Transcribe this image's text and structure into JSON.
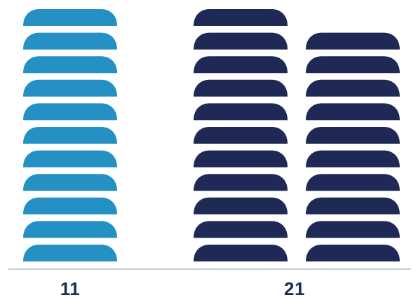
{
  "chart_data": {
    "type": "bar",
    "categories": [
      "11",
      "21"
    ],
    "series": [
      {
        "stacks": [
          11,
          0
        ]
      },
      {
        "stacks": [
          0,
          21
        ]
      }
    ],
    "group_values": [
      11,
      21
    ],
    "unit_per_icon": 1,
    "columns": [
      {
        "group": "11",
        "icons": 11
      },
      {
        "group": "21",
        "icons": 11
      },
      {
        "group": "21",
        "icons": 10
      }
    ],
    "colors": {
      "group_1": "#2490c4",
      "group_2": "#1e2a55",
      "baseline": "#c9ccd6"
    },
    "baseline": true,
    "grid": false,
    "legend": "none"
  },
  "labels": {
    "group_1": "11",
    "group_2": "21"
  }
}
